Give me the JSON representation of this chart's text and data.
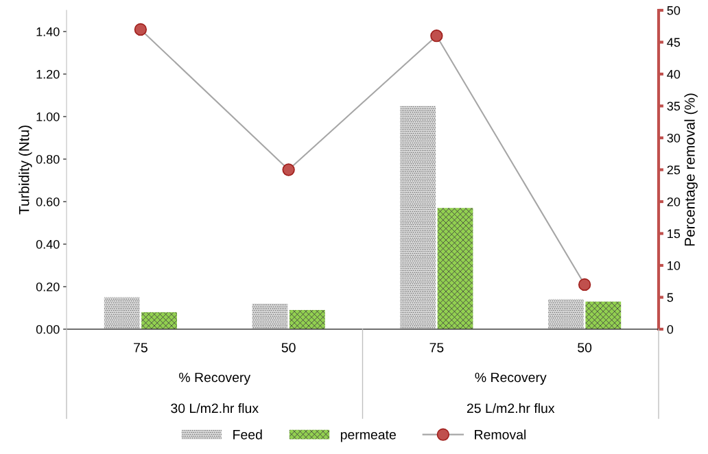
{
  "chart_data": {
    "type": "bar",
    "categories": [
      "75",
      "50",
      "75",
      "50"
    ],
    "series": [
      {
        "name": "Feed",
        "color": "#d9d9d9",
        "values": [
          0.15,
          0.12,
          1.05,
          0.14
        ]
      },
      {
        "name": "permeate",
        "color": "#92d050",
        "values": [
          0.08,
          0.09,
          0.57,
          0.13
        ]
      },
      {
        "name": "Removal",
        "type": "line",
        "axis": "y2",
        "color": "#a6a6a6",
        "values": [
          47,
          25,
          46,
          7
        ]
      }
    ],
    "ylabel": "Turbidity (Ntu)",
    "y2label": "Percentage removal (%)",
    "ylim": [
      0,
      1.5
    ],
    "yticks": [
      {
        "value": 0,
        "label": "0.00"
      },
      {
        "value": 0.2,
        "label": "0.20"
      },
      {
        "value": 0.4,
        "label": "0.40"
      },
      {
        "value": 0.6,
        "label": "0.60"
      },
      {
        "value": 0.8,
        "label": "0.80"
      },
      {
        "value": 1.0,
        "label": "1.00"
      },
      {
        "value": 1.2,
        "label": "1.20"
      },
      {
        "value": 1.4,
        "label": "1.40"
      }
    ],
    "y2lim": [
      0,
      50
    ],
    "y2ticks": [
      0,
      5,
      10,
      15,
      20,
      25,
      30,
      35,
      40,
      45,
      50
    ],
    "annotations": [
      "% Recovery",
      "% Recovery",
      "30 L/m2.hr flux",
      "25 L/m2.hr flux"
    ],
    "marker": "circle",
    "legend": "bottom",
    "grid": false
  }
}
